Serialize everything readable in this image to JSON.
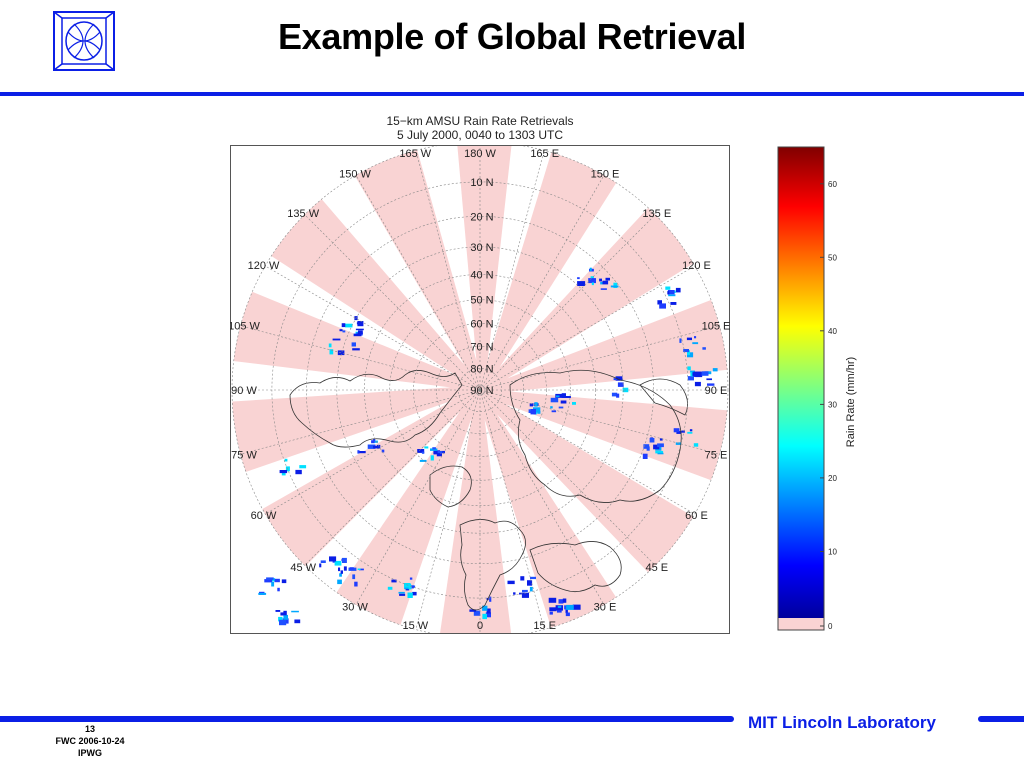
{
  "slide": {
    "title": "Example of Global Retrieval",
    "page_number": "13",
    "footer_line_1": "FWC 2006-10-24",
    "footer_line_2": "IPWG",
    "lab_name": "MIT Lincoln Laboratory",
    "accent_color": "#0b1fe6"
  },
  "figure": {
    "title_line_1": "15−km AMSU Rain Rate Retrievals",
    "title_line_2": "5 July 2000, 0040 to 1303 UTC",
    "projection": "north polar stereographic",
    "latitude_labels": [
      "10 N",
      "20 N",
      "30 N",
      "40 N",
      "50 N",
      "60 N",
      "70 N",
      "80 N",
      "90 N"
    ],
    "longitude_labels": [
      {
        "lon": 0,
        "text": "0"
      },
      {
        "lon": 15,
        "text": "15 E"
      },
      {
        "lon": 30,
        "text": "30 E"
      },
      {
        "lon": 45,
        "text": "45 E"
      },
      {
        "lon": 60,
        "text": "60 E"
      },
      {
        "lon": 75,
        "text": "75 E"
      },
      {
        "lon": 90,
        "text": "90 E"
      },
      {
        "lon": 105,
        "text": "105 E"
      },
      {
        "lon": 120,
        "text": "120 E"
      },
      {
        "lon": 135,
        "text": "135 E"
      },
      {
        "lon": 150,
        "text": "150 E"
      },
      {
        "lon": 165,
        "text": "165 E"
      },
      {
        "lon": 180,
        "text": "180 W"
      },
      {
        "lon": -165,
        "text": "165 W"
      },
      {
        "lon": -150,
        "text": "150 W"
      },
      {
        "lon": -135,
        "text": "135 W"
      },
      {
        "lon": -120,
        "text": "120 W"
      },
      {
        "lon": -105,
        "text": "105 W"
      },
      {
        "lon": -90,
        "text": "90 W"
      },
      {
        "lon": -75,
        "text": "75 W"
      },
      {
        "lon": -60,
        "text": "60 W"
      },
      {
        "lon": -45,
        "text": "45 W"
      },
      {
        "lon": -30,
        "text": "30 W"
      },
      {
        "lon": -15,
        "text": "15 W"
      }
    ],
    "swath_color": "#f9d3d3",
    "land_outline_color": "#333333"
  },
  "colorbar": {
    "label": "Rain Rate (mm/hr)",
    "ticks": [
      0,
      10,
      20,
      30,
      40,
      50,
      60
    ],
    "range": [
      0,
      65
    ],
    "colormap": "jet"
  }
}
